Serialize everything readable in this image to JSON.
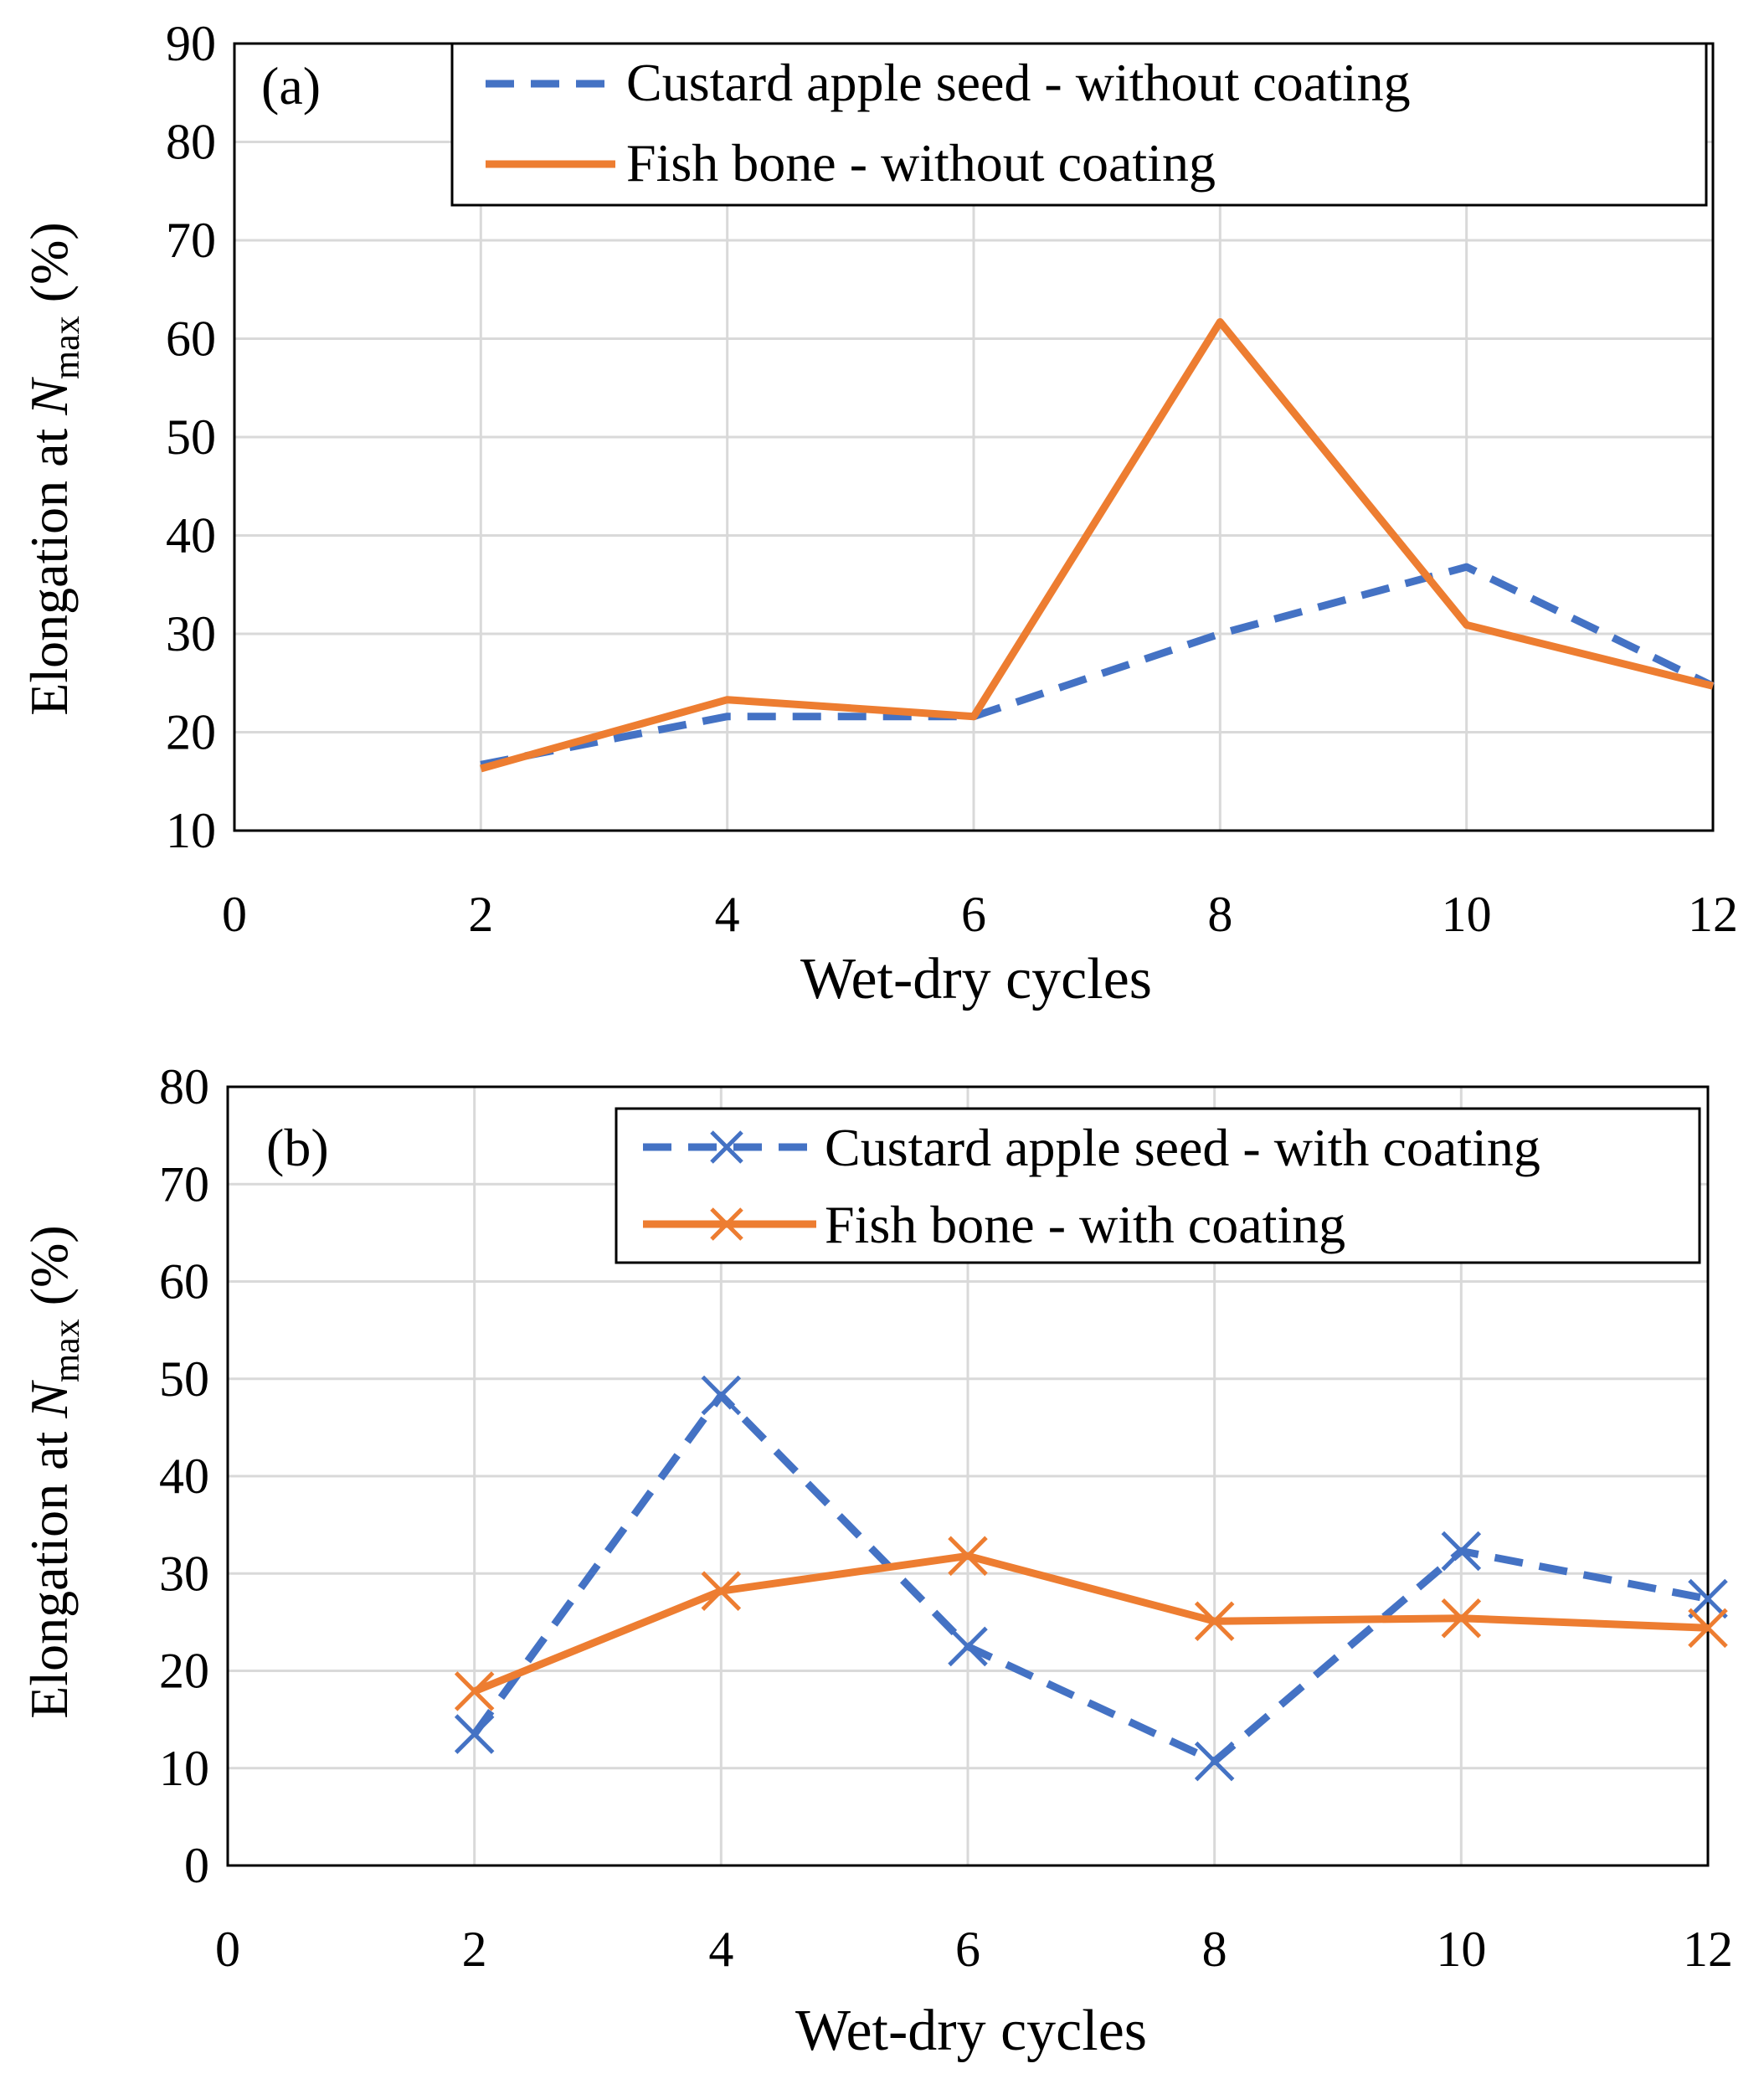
{
  "colors": {
    "series_blue": "#4472C4",
    "series_orange": "#ED7D31",
    "grid": "#D9D9D9",
    "axis": "#000000"
  },
  "chart_data": [
    {
      "type": "line",
      "panel_label": "(a)",
      "xlabel": "Wet-dry cycles",
      "ylabel": {
        "prefix": "Elongation at ",
        "symbol": "N",
        "subscript": "max",
        "suffix": " (%)"
      },
      "xlim": [
        0,
        12
      ],
      "ylim": [
        10,
        90
      ],
      "xticks": [
        0,
        2,
        4,
        6,
        8,
        10,
        12
      ],
      "yticks": [
        10,
        20,
        30,
        40,
        50,
        60,
        70,
        80,
        90
      ],
      "grid": true,
      "legend_position": "top-right",
      "x": [
        2,
        4,
        6,
        8,
        10,
        12
      ],
      "series": [
        {
          "name": "Custard apple seed - without coating",
          "style": "dashed",
          "marker": "none",
          "color": "#4472C4",
          "values": [
            16.7,
            21.6,
            21.6,
            30.0,
            36.8,
            24.7
          ]
        },
        {
          "name": "Fish bone - without coating",
          "style": "solid",
          "marker": "none",
          "color": "#ED7D31",
          "values": [
            16.3,
            23.3,
            21.6,
            61.7,
            30.9,
            24.7
          ]
        }
      ]
    },
    {
      "type": "line",
      "panel_label": "(b)",
      "xlabel": "Wet-dry cycles",
      "ylabel": {
        "prefix": "Elongation at ",
        "symbol": "N",
        "subscript": "max",
        "suffix": " (%)"
      },
      "xlim": [
        0,
        12
      ],
      "ylim": [
        0,
        80
      ],
      "xticks": [
        0,
        2,
        4,
        6,
        8,
        10,
        12
      ],
      "yticks": [
        0,
        10,
        20,
        30,
        40,
        50,
        60,
        70,
        80
      ],
      "grid": true,
      "legend_position": "top-right",
      "x": [
        2,
        4,
        6,
        8,
        10,
        12
      ],
      "series": [
        {
          "name": "Custard apple seed - with coating",
          "style": "dashed",
          "marker": "x",
          "color": "#4472C4",
          "values": [
            13.5,
            48.3,
            22.5,
            10.7,
            32.3,
            27.4
          ]
        },
        {
          "name": "Fish bone - with coating",
          "style": "solid",
          "marker": "x",
          "color": "#ED7D31",
          "values": [
            17.9,
            28.2,
            31.8,
            25.1,
            25.4,
            24.4
          ]
        }
      ]
    }
  ]
}
